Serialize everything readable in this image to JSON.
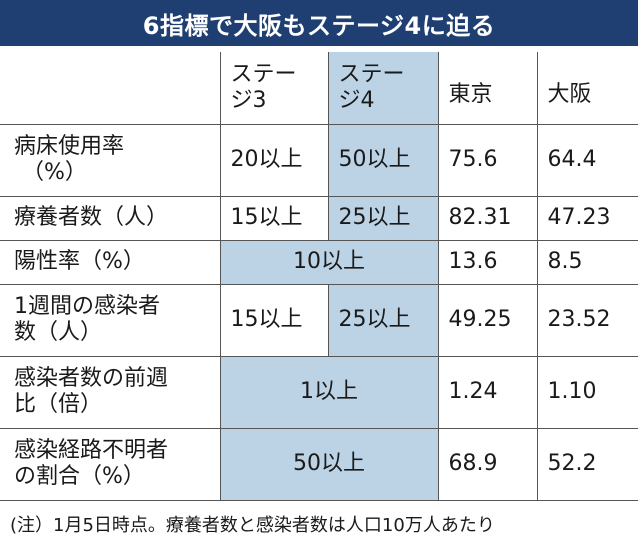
{
  "title": "6指標で大阪もステージ4に迫る",
  "header": {
    "blank": "",
    "stage3_line1": "ステー",
    "stage3_line2": "ジ3",
    "stage4_line1": "ステー",
    "stage4_line2": "ジ4",
    "tokyo": "東京",
    "osaka": "大阪"
  },
  "rows": [
    {
      "label_line1": "病床使用率",
      "label_line2": "（%）",
      "stage3": "20以上",
      "stage4": "50以上",
      "tokyo": "75.6",
      "osaka": "64.4"
    },
    {
      "label_line1": "療養者数（人）",
      "stage3": "15以上",
      "stage4": "25以上",
      "tokyo": "82.31",
      "osaka": "47.23"
    },
    {
      "label_line1": "陽性率（%）",
      "merged": "10以上",
      "tokyo": "13.6",
      "osaka": "8.5"
    },
    {
      "label_line1": "1週間の感染者",
      "label_line2": "数（人）",
      "stage3": "15以上",
      "stage4": "25以上",
      "tokyo": "49.25",
      "osaka": "23.52"
    },
    {
      "label_line1": "感染者数の前週",
      "label_line2": "比（倍）",
      "merged": "1以上",
      "tokyo": "1.24",
      "osaka": "1.10"
    },
    {
      "label_line1": "感染経路不明者",
      "label_line2": "の割合（%）",
      "merged": "50以上",
      "tokyo": "68.9",
      "osaka": "52.2"
    }
  ],
  "footnote": "(注）1月5日時点。療養者数と感染者数は人口10万人あたり",
  "colors": {
    "title_bg": "#1f3f72",
    "highlight": "#bcd3e6",
    "border": "#555555"
  }
}
